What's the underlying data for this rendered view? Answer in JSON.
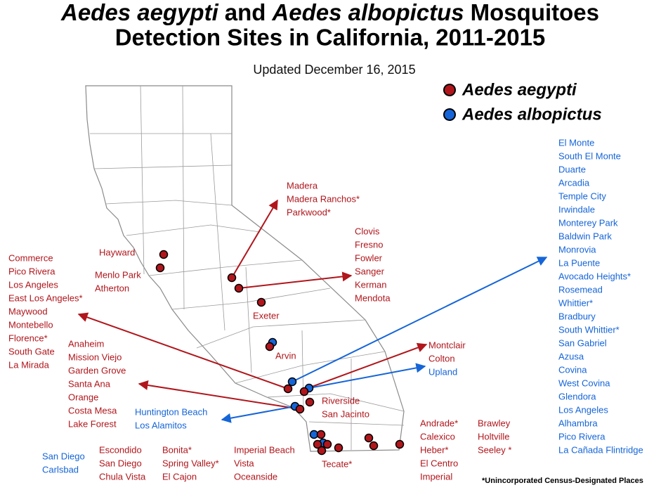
{
  "title": {
    "species_1": "Aedes aegypti",
    "joiner": "and",
    "species_2": "Aedes albopictus",
    "noun": "Mosquitoes",
    "line_2": "Detection Sites in California, 2011-2015"
  },
  "subtitle": "Updated December 16, 2015",
  "legend": [
    {
      "name": "Aedes aegypti",
      "color": "#b0161c"
    },
    {
      "name": "Aedes albopictus",
      "color": "#1565d8"
    }
  ],
  "groups": [
    {
      "color": "#b0161c",
      "names": [
        "Madera",
        "Madera Ranchos*",
        "Parkwood*"
      ]
    },
    {
      "color": "#b0161c",
      "names": [
        "Clovis",
        "Fresno",
        "Fowler",
        "Sanger",
        "Kerman",
        "Mendota"
      ]
    },
    {
      "color": "#b0161c",
      "names": [
        "Hayward"
      ]
    },
    {
      "color": "#b0161c",
      "names": [
        "Menlo Park",
        "Atherton"
      ]
    },
    {
      "color": "#b0161c",
      "names": [
        "Exeter"
      ]
    },
    {
      "color": "#b0161c",
      "names": [
        "Arvin"
      ]
    },
    {
      "color": "#b0161c",
      "names": [
        "Commerce",
        "Pico Rivera",
        "Los Angeles",
        "East Los Angeles*",
        "Maywood",
        "Montebello",
        "Florence*",
        "South Gate",
        "La Mirada"
      ]
    },
    {
      "color": "#b0161c",
      "names": [
        "Anaheim",
        "Mission Viejo",
        "Garden Grove",
        "Santa Ana",
        "Orange",
        "Costa Mesa",
        "Lake Forest"
      ]
    },
    {
      "color": "#b0161c",
      "names": [
        "Montclair",
        "Colton"
      ]
    },
    {
      "color": "#1565d8",
      "names": [
        "Upland"
      ]
    },
    {
      "color": "#b0161c",
      "names": [
        "Riverside",
        "San Jacinto"
      ]
    },
    {
      "color": "#1565d8",
      "names": [
        "Huntington Beach",
        "Los Alamitos"
      ]
    },
    {
      "color": "#1565d8",
      "names": [
        "San Diego",
        "Carlsbad"
      ]
    },
    {
      "color": "#b0161c",
      "names": [
        "Escondido",
        "San Diego",
        "Chula Vista"
      ]
    },
    {
      "color": "#b0161c",
      "names": [
        "Bonita*",
        "Spring Valley*",
        "El Cajon"
      ]
    },
    {
      "color": "#b0161c",
      "names": [
        "Imperial Beach",
        "Vista",
        "Oceanside"
      ]
    },
    {
      "color": "#b0161c",
      "names": [
        "Tecate*"
      ]
    },
    {
      "color": "#b0161c",
      "names": [
        "Andrade*",
        "Calexico",
        "Heber*",
        "El Centro",
        "Imperial"
      ]
    },
    {
      "color": "#b0161c",
      "names": [
        "Brawley",
        "Holtville",
        "Seeley *"
      ]
    },
    {
      "color": "#1565d8",
      "names": [
        "El Monte",
        "South El Monte",
        "Duarte",
        "Arcadia",
        "Temple City",
        "Irwindale",
        "Monterey Park",
        "Baldwin Park",
        "Monrovia",
        "La Puente",
        "Avocado Heights*",
        "Rosemead",
        "Whittier*",
        "Bradbury",
        "South Whittier*",
        "San Gabriel",
        "Azusa",
        "Covina",
        "West Covina",
        "Glendora",
        "Los Angeles",
        "Alhambra",
        "Pico Rivera",
        "La Cañada Flintridge"
      ]
    }
  ],
  "footnote": "*Unincorporated Census-Designated Places"
}
